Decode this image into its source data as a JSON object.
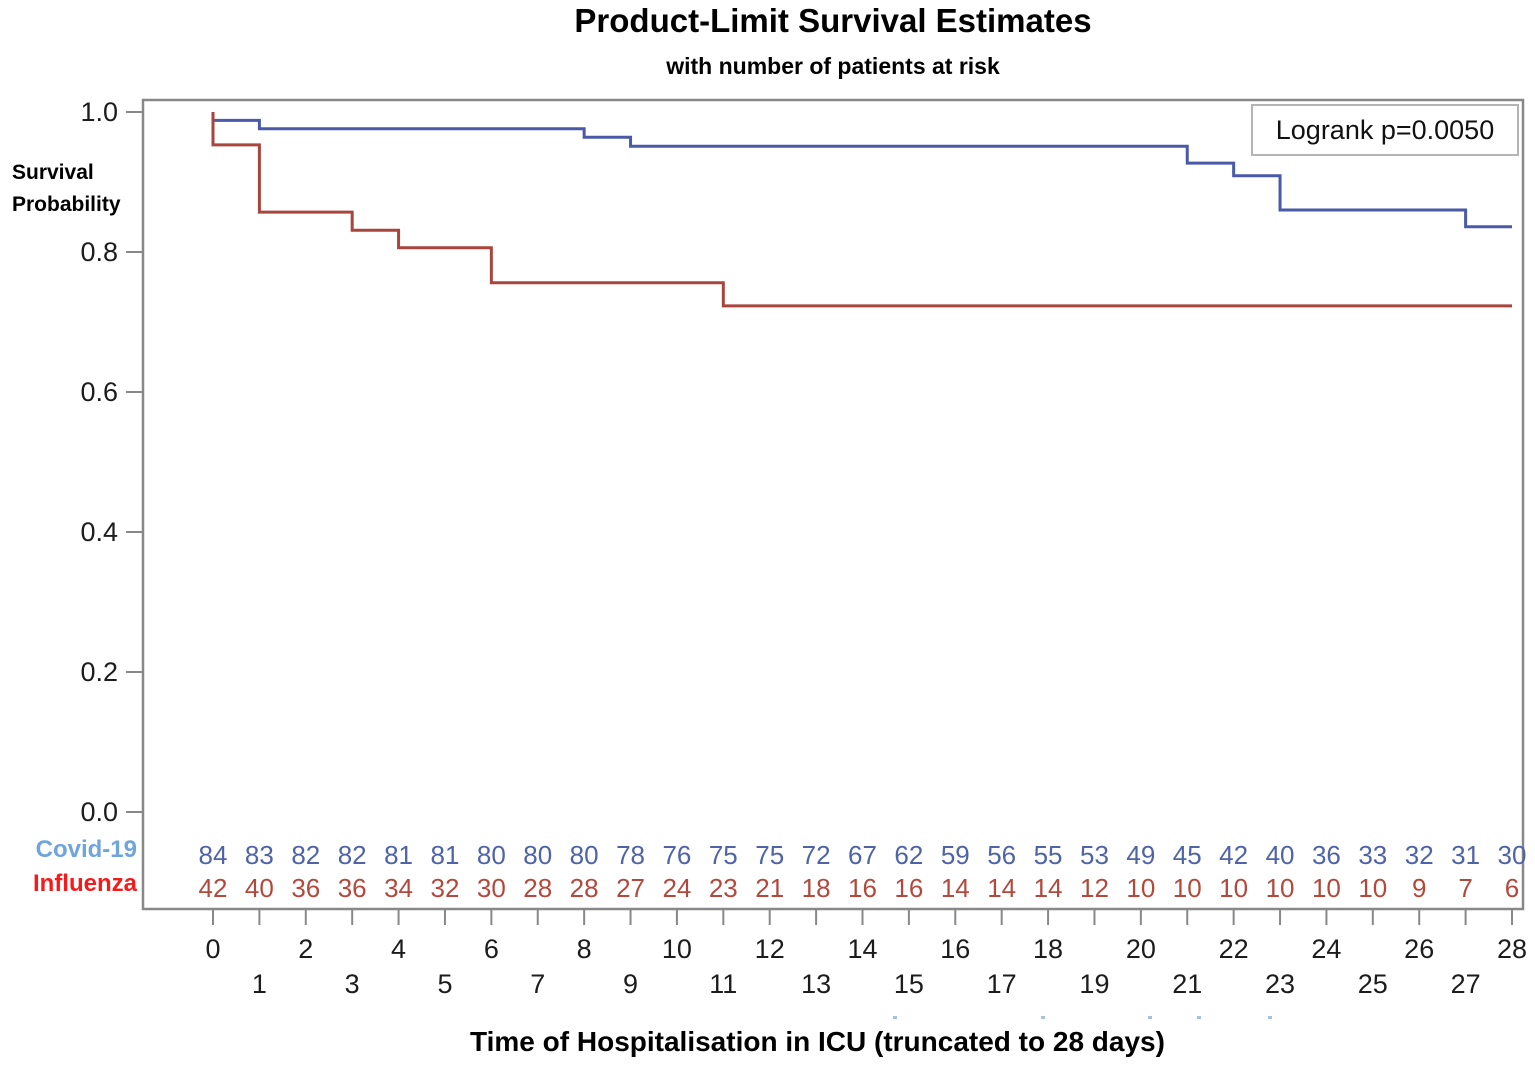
{
  "figure": {
    "title": "Product-Limit Survival Estimates",
    "subtitle": "with number of patients at risk",
    "logrank_label": "Logrank p=0.0050",
    "y_axis_label_line1": "Survival",
    "y_axis_label_line2": "Probability",
    "x_axis_label": "Time of Hospitalisation in ICU (truncated to 28 days)",
    "y_tick_labels": [
      "1.0",
      "0.8",
      "0.6",
      "0.4",
      "0.2",
      "0.0"
    ],
    "x_tick_labels": [
      "0",
      "1",
      "2",
      "3",
      "4",
      "5",
      "6",
      "7",
      "8",
      "9",
      "10",
      "11",
      "12",
      "13",
      "14",
      "15",
      "16",
      "17",
      "18",
      "19",
      "20",
      "21",
      "22",
      "23",
      "24",
      "25",
      "26",
      "27",
      "28"
    ]
  },
  "risk_table": {
    "rows": [
      {
        "label": "Covid-19",
        "label_color": "#6fa4dc",
        "value_color": "#4f63a8",
        "values": [
          84,
          83,
          82,
          82,
          81,
          81,
          80,
          80,
          80,
          78,
          76,
          75,
          75,
          72,
          67,
          62,
          59,
          56,
          55,
          53,
          49,
          45,
          42,
          40,
          36,
          33,
          32,
          31,
          30
        ]
      },
      {
        "label": "Influenza",
        "label_color": "#f51b1b",
        "value_color": "#b3493d",
        "values": [
          42,
          40,
          36,
          36,
          34,
          32,
          30,
          28,
          28,
          27,
          24,
          23,
          21,
          18,
          16,
          16,
          14,
          14,
          14,
          12,
          10,
          10,
          10,
          10,
          10,
          10,
          9,
          7,
          6
        ]
      }
    ]
  },
  "chart_data": {
    "type": "line",
    "subtype": "kaplan_meier_step",
    "title": "Product-Limit Survival Estimates",
    "subtitle": "with number of patients at risk",
    "xlabel": "Time of Hospitalisation in ICU (truncated to 28 days)",
    "ylabel": "Survival Probability",
    "xlim": [
      0,
      28
    ],
    "ylim": [
      0.0,
      1.0
    ],
    "x_ticks": [
      0,
      1,
      2,
      3,
      4,
      5,
      6,
      7,
      8,
      9,
      10,
      11,
      12,
      13,
      14,
      15,
      16,
      17,
      18,
      19,
      20,
      21,
      22,
      23,
      24,
      25,
      26,
      27,
      28
    ],
    "y_ticks": [
      1.0,
      0.8,
      0.6,
      0.4,
      0.2,
      0.0
    ],
    "grid": false,
    "legend_position": "none",
    "annotations": [
      {
        "text": "Logrank p=0.0050",
        "position": "top-right"
      }
    ],
    "series": [
      {
        "name": "Covid-19",
        "color": "#4a5aa8",
        "start_survival": 1.0,
        "steps": [
          {
            "day": 0,
            "survival": 0.988
          },
          {
            "day": 1,
            "survival": 0.976
          },
          {
            "day": 8,
            "survival": 0.964
          },
          {
            "day": 9,
            "survival": 0.951
          },
          {
            "day": 21,
            "survival": 0.927
          },
          {
            "day": 22,
            "survival": 0.909
          },
          {
            "day": 23,
            "survival": 0.86
          },
          {
            "day": 27,
            "survival": 0.836
          }
        ],
        "end_day": 28,
        "at_risk": [
          84,
          83,
          82,
          82,
          81,
          81,
          80,
          80,
          80,
          78,
          76,
          75,
          75,
          72,
          67,
          62,
          59,
          56,
          55,
          53,
          49,
          45,
          42,
          40,
          36,
          33,
          32,
          31,
          30
        ]
      },
      {
        "name": "Influenza",
        "color": "#a8453c",
        "start_survival": 1.0,
        "steps": [
          {
            "day": 0,
            "survival": 0.953
          },
          {
            "day": 1,
            "survival": 0.857
          },
          {
            "day": 3,
            "survival": 0.831
          },
          {
            "day": 4,
            "survival": 0.806
          },
          {
            "day": 6,
            "survival": 0.756
          },
          {
            "day": 11,
            "survival": 0.723
          }
        ],
        "end_day": 28,
        "at_risk": [
          42,
          40,
          36,
          36,
          34,
          32,
          30,
          28,
          28,
          27,
          24,
          23,
          21,
          18,
          16,
          16,
          14,
          14,
          14,
          12,
          10,
          10,
          10,
          10,
          10,
          10,
          9,
          7,
          6
        ]
      }
    ]
  }
}
